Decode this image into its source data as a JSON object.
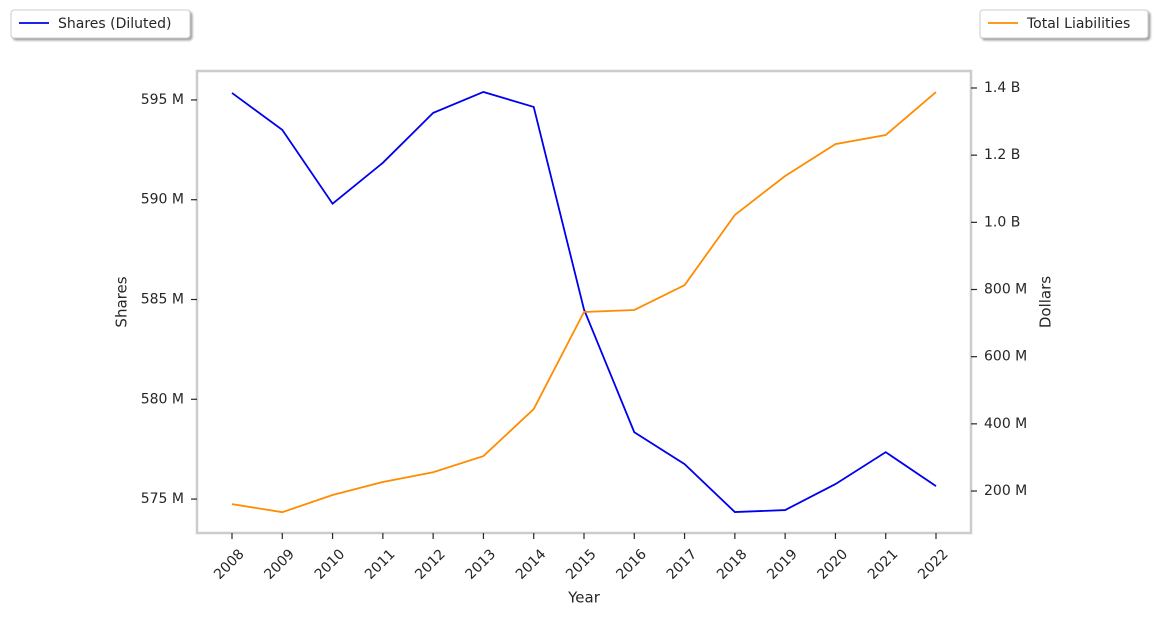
{
  "chart_data": {
    "type": "line",
    "x_label": "Year",
    "y_label": "Shares",
    "y2_label": "Dollars",
    "categories": [
      "2008",
      "2009",
      "2010",
      "2011",
      "2012",
      "2013",
      "2014",
      "2015",
      "2016",
      "2017",
      "2018",
      "2019",
      "2020",
      "2021",
      "2022"
    ],
    "series": [
      {
        "name": "Shares (Diluted)",
        "color": "#0000ee",
        "axis": "y",
        "values": [
          595350000,
          593500000,
          589800000,
          591850000,
          594350000,
          595400000,
          594650000,
          584500000,
          578350000,
          576750000,
          574350000,
          574450000,
          575750000,
          577350000,
          575650000
        ]
      },
      {
        "name": "Total Liabilities",
        "color": "#ff8c00",
        "axis": "y2",
        "values": [
          161000000,
          137000000,
          188000000,
          227000000,
          256000000,
          304000000,
          444000000,
          733000000,
          739000000,
          813000000,
          1022000000,
          1138000000,
          1233000000,
          1260000000,
          1388000000
        ]
      }
    ],
    "ylim": [
      573300000,
      596450000
    ],
    "yticks": [
      {
        "value": 575000000,
        "label": "575 M"
      },
      {
        "value": 580000000,
        "label": "580 M"
      },
      {
        "value": 585000000,
        "label": "585 M"
      },
      {
        "value": 590000000,
        "label": "590 M"
      },
      {
        "value": 595000000,
        "label": "595 M"
      }
    ],
    "y2lim": [
      75000000,
      1450600000
    ],
    "y2ticks": [
      {
        "value": 200000000,
        "label": "200 M"
      },
      {
        "value": 400000000,
        "label": "400 M"
      },
      {
        "value": 600000000,
        "label": "600 M"
      },
      {
        "value": 800000000,
        "label": "800 M"
      },
      {
        "value": 1000000000,
        "label": "1.0 B"
      },
      {
        "value": 1200000000,
        "label": "1.2 B"
      },
      {
        "value": 1400000000,
        "label": "1.4 B"
      }
    ],
    "grid": false
  }
}
